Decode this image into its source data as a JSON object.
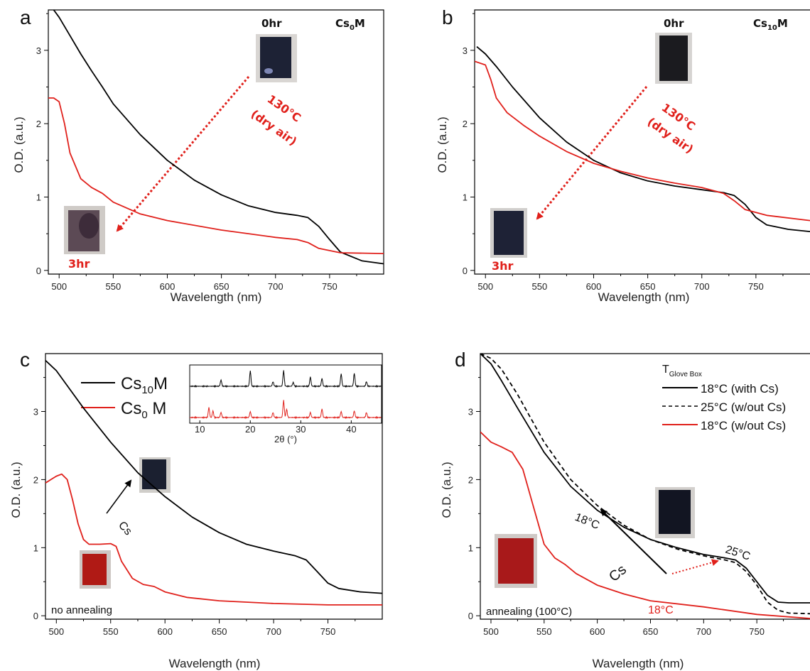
{
  "chart_data": [
    {
      "type": "line",
      "panel_label": "a",
      "xlabel": "Wavelength (nm)",
      "ylabel": "O.D. (a.u.)",
      "xlim": [
        490,
        800
      ],
      "ylim": [
        -0.05,
        3.55
      ],
      "xticks": [
        500,
        550,
        600,
        650,
        700,
        750
      ],
      "yticks": [
        0,
        1,
        2,
        3
      ],
      "annotations": {
        "time_start": "0hr",
        "sample": "Cs",
        "sample_sub": "0",
        "sample_suffix": "M",
        "condition_line1": "130°C",
        "condition_line2": "(dry air)",
        "time_end": "3hr"
      },
      "series": [
        {
          "color": "#000000",
          "x": [
            492,
            495,
            500,
            510,
            520,
            530,
            540,
            550,
            575,
            600,
            625,
            650,
            675,
            700,
            720,
            730,
            740,
            750,
            760,
            780,
            800
          ],
          "y": [
            3.58,
            3.55,
            3.45,
            3.2,
            2.95,
            2.72,
            2.5,
            2.27,
            1.85,
            1.5,
            1.23,
            1.03,
            0.88,
            0.79,
            0.75,
            0.72,
            0.6,
            0.42,
            0.25,
            0.13,
            0.09
          ]
        },
        {
          "color": "#e0201b",
          "x": [
            490,
            495,
            500,
            505,
            510,
            520,
            530,
            540,
            550,
            575,
            600,
            650,
            700,
            720,
            730,
            740,
            760,
            800
          ],
          "y": [
            2.35,
            2.35,
            2.3,
            2.0,
            1.6,
            1.25,
            1.13,
            1.05,
            0.93,
            0.77,
            0.68,
            0.55,
            0.45,
            0.42,
            0.38,
            0.3,
            0.24,
            0.23
          ]
        }
      ]
    },
    {
      "type": "line",
      "panel_label": "b",
      "xlabel": "Wavelength (nm)",
      "ylabel": "O.D. (a.u.)",
      "xlim": [
        490,
        800
      ],
      "ylim": [
        -0.05,
        3.55
      ],
      "xticks": [
        500,
        550,
        600,
        650,
        700,
        750
      ],
      "yticks": [
        0,
        1,
        2,
        3
      ],
      "annotations": {
        "time_start": "0hr",
        "sample": "Cs",
        "sample_sub": "10",
        "sample_suffix": "M",
        "condition_line1": "130°C",
        "condition_line2": "(dry air)",
        "time_end": "3hr"
      },
      "series": [
        {
          "color": "#000000",
          "x": [
            492,
            500,
            510,
            525,
            550,
            575,
            600,
            625,
            650,
            675,
            700,
            720,
            730,
            740,
            750,
            760,
            780,
            800
          ],
          "y": [
            3.05,
            2.95,
            2.78,
            2.5,
            2.08,
            1.75,
            1.5,
            1.33,
            1.22,
            1.15,
            1.1,
            1.06,
            1.02,
            0.9,
            0.72,
            0.62,
            0.56,
            0.53
          ]
        },
        {
          "color": "#e0201b",
          "x": [
            490,
            500,
            505,
            510,
            520,
            535,
            550,
            575,
            600,
            625,
            650,
            675,
            700,
            720,
            730,
            740,
            760,
            800
          ],
          "y": [
            2.85,
            2.8,
            2.6,
            2.35,
            2.15,
            1.98,
            1.83,
            1.62,
            1.46,
            1.35,
            1.26,
            1.19,
            1.13,
            1.05,
            0.95,
            0.83,
            0.75,
            0.68
          ]
        }
      ]
    },
    {
      "type": "line",
      "panel_label": "c",
      "xlabel": "Wavelength (nm)",
      "ylabel": "O.D. (a.u.)",
      "xlim": [
        490,
        800
      ],
      "ylim": [
        -0.05,
        3.85
      ],
      "xticks": [
        500,
        550,
        600,
        650,
        700,
        750
      ],
      "yticks": [
        0,
        1,
        2,
        3
      ],
      "legend": [
        {
          "name_main": "Cs",
          "name_sub": "10",
          "name_tail": "M",
          "color": "#000000"
        },
        {
          "name_main": "Cs",
          "name_sub": "0",
          "name_tail": " M",
          "color": "#e0201b"
        }
      ],
      "annotations": {
        "arrow_label": "Cs",
        "bottom_note": "no annealing"
      },
      "inset": {
        "xlabel": "2θ (°)",
        "xticks": [
          10,
          20,
          30,
          40
        ],
        "xlim": [
          8,
          46
        ],
        "peaks_black": [
          14.2,
          20.0,
          24.5,
          26.6,
          28.5,
          31.9,
          34.2,
          38.0,
          40.6,
          43.0
        ],
        "peaks_red": [
          11.8,
          12.6,
          14.2,
          20.0,
          24.5,
          26.6,
          27.2,
          31.9,
          34.2,
          38.0,
          40.6,
          43.0
        ]
      },
      "series": [
        {
          "color": "#000000",
          "x": [
            490,
            500,
            510,
            525,
            550,
            575,
            600,
            625,
            650,
            675,
            700,
            720,
            730,
            740,
            750,
            760,
            780,
            800
          ],
          "y": [
            3.75,
            3.6,
            3.38,
            3.05,
            2.55,
            2.1,
            1.75,
            1.45,
            1.22,
            1.05,
            0.95,
            0.88,
            0.82,
            0.65,
            0.48,
            0.4,
            0.35,
            0.33
          ]
        },
        {
          "color": "#e0201b",
          "x": [
            490,
            495,
            500,
            505,
            510,
            515,
            520,
            525,
            530,
            540,
            550,
            555,
            560,
            570,
            580,
            590,
            600,
            620,
            650,
            700,
            750,
            800
          ],
          "y": [
            1.95,
            2.0,
            2.05,
            2.08,
            2.0,
            1.7,
            1.35,
            1.12,
            1.05,
            1.05,
            1.06,
            1.02,
            0.8,
            0.55,
            0.46,
            0.43,
            0.35,
            0.27,
            0.22,
            0.18,
            0.16,
            0.16
          ]
        }
      ]
    },
    {
      "type": "line",
      "panel_label": "d",
      "xlabel": "Wavelength (nm)",
      "ylabel": "O.D. (a.u.)",
      "xlim": [
        490,
        800
      ],
      "ylim": [
        -0.05,
        3.85
      ],
      "xticks": [
        500,
        550,
        600,
        650,
        700,
        750
      ],
      "yticks": [
        0,
        1,
        2,
        3
      ],
      "legend_title_main": "T",
      "legend_title_sub": "Glove Box",
      "legend": [
        {
          "name": "18°C (with Cs)",
          "color": "#000000",
          "dash": "solid"
        },
        {
          "name": "25°C (w/out Cs)",
          "color": "#000000",
          "dash": "dashed"
        },
        {
          "name": "18°C (w/out Cs)",
          "color": "#e0201b",
          "dash": "solid"
        }
      ],
      "annotations": {
        "label_18": "18°C",
        "label_25": "25°C",
        "label_cs": "Cs",
        "label_18_red": "18°C",
        "bottom_note": "annealing (100°C)"
      },
      "series": [
        {
          "name": "18°C (with Cs)",
          "color": "#000000",
          "dash": "solid",
          "x": [
            490,
            500,
            510,
            525,
            550,
            575,
            600,
            625,
            650,
            675,
            700,
            720,
            730,
            740,
            750,
            760,
            770,
            780,
            800
          ],
          "y": [
            3.85,
            3.7,
            3.45,
            3.05,
            2.4,
            1.9,
            1.55,
            1.3,
            1.12,
            1.0,
            0.9,
            0.85,
            0.82,
            0.7,
            0.5,
            0.3,
            0.2,
            0.19,
            0.19
          ]
        },
        {
          "name": "25°C (w/out Cs)",
          "color": "#000000",
          "dash": "dashed",
          "x": [
            490,
            500,
            510,
            525,
            550,
            575,
            600,
            625,
            650,
            675,
            700,
            720,
            730,
            740,
            750,
            760,
            770,
            780,
            800
          ],
          "y": [
            3.85,
            3.78,
            3.62,
            3.25,
            2.55,
            2.0,
            1.62,
            1.33,
            1.12,
            0.98,
            0.88,
            0.82,
            0.78,
            0.65,
            0.45,
            0.2,
            0.08,
            0.04,
            0.03
          ]
        },
        {
          "name": "18°C (w/out Cs)",
          "color": "#e0201b",
          "dash": "solid",
          "x": [
            490,
            500,
            510,
            520,
            530,
            540,
            550,
            560,
            570,
            580,
            600,
            625,
            650,
            700,
            750,
            800
          ],
          "y": [
            2.7,
            2.55,
            2.48,
            2.4,
            2.15,
            1.6,
            1.05,
            0.85,
            0.75,
            0.62,
            0.45,
            0.32,
            0.22,
            0.13,
            0.02,
            -0.04
          ]
        }
      ]
    }
  ]
}
